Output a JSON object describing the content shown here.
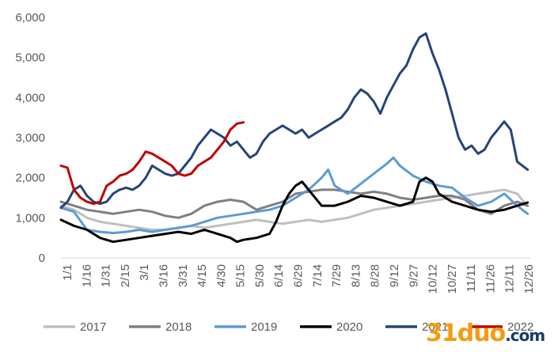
{
  "chart_data": {
    "type": "line",
    "title": "",
    "xlabel": "",
    "ylabel": "",
    "ylim": [
      0,
      6000
    ],
    "y_ticks": [
      "0",
      "1,000",
      "2,000",
      "3,000",
      "4,000",
      "5,000",
      "6,000"
    ],
    "y_tick_values": [
      0,
      1000,
      2000,
      3000,
      4000,
      5000,
      6000
    ],
    "x_tick_labels": [
      "1/1",
      "1/16",
      "1/31",
      "2/15",
      "3/1",
      "3/16",
      "3/31",
      "4/15",
      "4/30",
      "5/15",
      "5/30",
      "6/14",
      "6/29",
      "7/14",
      "7/29",
      "8/13",
      "8/28",
      "9/12",
      "9/27",
      "10/12",
      "10/27",
      "11/11",
      "11/26",
      "12/11",
      "12/26"
    ],
    "x_unit": "day of year",
    "xlim": [
      0,
      360
    ],
    "grid": false,
    "legend_position": "bottom",
    "series": [
      {
        "name": "2017",
        "color": "#bfbfbf",
        "width": 3,
        "points": [
          [
            0,
            1300
          ],
          [
            10,
            1200
          ],
          [
            20,
            1000
          ],
          [
            30,
            900
          ],
          [
            40,
            850
          ],
          [
            50,
            800
          ],
          [
            60,
            750
          ],
          [
            70,
            700
          ],
          [
            80,
            700
          ],
          [
            90,
            750
          ],
          [
            100,
            800
          ],
          [
            110,
            750
          ],
          [
            120,
            800
          ],
          [
            130,
            850
          ],
          [
            140,
            900
          ],
          [
            150,
            950
          ],
          [
            160,
            900
          ],
          [
            170,
            850
          ],
          [
            180,
            900
          ],
          [
            190,
            950
          ],
          [
            200,
            900
          ],
          [
            210,
            950
          ],
          [
            220,
            1000
          ],
          [
            230,
            1100
          ],
          [
            240,
            1200
          ],
          [
            250,
            1250
          ],
          [
            260,
            1300
          ],
          [
            270,
            1350
          ],
          [
            280,
            1400
          ],
          [
            290,
            1450
          ],
          [
            300,
            1500
          ],
          [
            310,
            1550
          ],
          [
            320,
            1600
          ],
          [
            330,
            1650
          ],
          [
            340,
            1700
          ],
          [
            350,
            1600
          ],
          [
            355,
            1400
          ]
        ]
      },
      {
        "name": "2018",
        "color": "#7f7f7f",
        "width": 3,
        "points": [
          [
            0,
            1400
          ],
          [
            10,
            1300
          ],
          [
            20,
            1200
          ],
          [
            30,
            1150
          ],
          [
            40,
            1100
          ],
          [
            50,
            1150
          ],
          [
            60,
            1200
          ],
          [
            70,
            1150
          ],
          [
            80,
            1050
          ],
          [
            90,
            1000
          ],
          [
            100,
            1100
          ],
          [
            110,
            1300
          ],
          [
            120,
            1400
          ],
          [
            130,
            1450
          ],
          [
            140,
            1400
          ],
          [
            150,
            1200
          ],
          [
            160,
            1300
          ],
          [
            170,
            1400
          ],
          [
            180,
            1600
          ],
          [
            190,
            1650
          ],
          [
            200,
            1700
          ],
          [
            210,
            1700
          ],
          [
            220,
            1650
          ],
          [
            230,
            1600
          ],
          [
            240,
            1650
          ],
          [
            250,
            1600
          ],
          [
            260,
            1500
          ],
          [
            270,
            1450
          ],
          [
            280,
            1500
          ],
          [
            290,
            1550
          ],
          [
            300,
            1550
          ],
          [
            310,
            1450
          ],
          [
            320,
            1200
          ],
          [
            330,
            1100
          ],
          [
            340,
            1300
          ],
          [
            350,
            1400
          ],
          [
            358,
            1300
          ]
        ]
      },
      {
        "name": "2019",
        "color": "#5b9bd5",
        "width": 3,
        "points": [
          [
            0,
            1250
          ],
          [
            10,
            1150
          ],
          [
            20,
            700
          ],
          [
            30,
            650
          ],
          [
            40,
            620
          ],
          [
            50,
            650
          ],
          [
            60,
            700
          ],
          [
            70,
            650
          ],
          [
            80,
            700
          ],
          [
            90,
            750
          ],
          [
            100,
            800
          ],
          [
            110,
            900
          ],
          [
            120,
            1000
          ],
          [
            130,
            1050
          ],
          [
            140,
            1100
          ],
          [
            150,
            1150
          ],
          [
            160,
            1200
          ],
          [
            170,
            1300
          ],
          [
            180,
            1500
          ],
          [
            190,
            1700
          ],
          [
            200,
            2000
          ],
          [
            205,
            2200
          ],
          [
            210,
            1800
          ],
          [
            220,
            1600
          ],
          [
            230,
            1850
          ],
          [
            240,
            2100
          ],
          [
            250,
            2350
          ],
          [
            255,
            2500
          ],
          [
            260,
            2300
          ],
          [
            270,
            2050
          ],
          [
            280,
            1900
          ],
          [
            290,
            1800
          ],
          [
            300,
            1750
          ],
          [
            310,
            1500
          ],
          [
            320,
            1300
          ],
          [
            330,
            1400
          ],
          [
            340,
            1600
          ],
          [
            350,
            1300
          ],
          [
            358,
            1100
          ]
        ]
      },
      {
        "name": "2020",
        "color": "#000000",
        "width": 3,
        "points": [
          [
            0,
            950
          ],
          [
            10,
            800
          ],
          [
            20,
            700
          ],
          [
            30,
            500
          ],
          [
            40,
            400
          ],
          [
            50,
            450
          ],
          [
            60,
            500
          ],
          [
            70,
            550
          ],
          [
            80,
            600
          ],
          [
            90,
            650
          ],
          [
            100,
            600
          ],
          [
            110,
            700
          ],
          [
            120,
            600
          ],
          [
            130,
            500
          ],
          [
            135,
            400
          ],
          [
            140,
            450
          ],
          [
            150,
            500
          ],
          [
            160,
            600
          ],
          [
            165,
            900
          ],
          [
            170,
            1300
          ],
          [
            175,
            1600
          ],
          [
            180,
            1800
          ],
          [
            185,
            1900
          ],
          [
            190,
            1700
          ],
          [
            200,
            1300
          ],
          [
            210,
            1300
          ],
          [
            220,
            1400
          ],
          [
            230,
            1550
          ],
          [
            240,
            1500
          ],
          [
            250,
            1400
          ],
          [
            260,
            1300
          ],
          [
            270,
            1400
          ],
          [
            275,
            1900
          ],
          [
            280,
            2000
          ],
          [
            285,
            1900
          ],
          [
            290,
            1600
          ],
          [
            300,
            1400
          ],
          [
            310,
            1300
          ],
          [
            320,
            1200
          ],
          [
            330,
            1150
          ],
          [
            340,
            1200
          ],
          [
            350,
            1300
          ],
          [
            358,
            1380
          ]
        ]
      },
      {
        "name": "2021",
        "color": "#264478",
        "width": 3,
        "points": [
          [
            0,
            1250
          ],
          [
            5,
            1400
          ],
          [
            10,
            1700
          ],
          [
            15,
            1800
          ],
          [
            20,
            1550
          ],
          [
            25,
            1400
          ],
          [
            30,
            1350
          ],
          [
            35,
            1400
          ],
          [
            40,
            1600
          ],
          [
            45,
            1700
          ],
          [
            50,
            1750
          ],
          [
            55,
            1700
          ],
          [
            60,
            1800
          ],
          [
            65,
            2000
          ],
          [
            70,
            2300
          ],
          [
            75,
            2200
          ],
          [
            80,
            2100
          ],
          [
            85,
            2050
          ],
          [
            90,
            2100
          ],
          [
            95,
            2300
          ],
          [
            100,
            2500
          ],
          [
            105,
            2800
          ],
          [
            110,
            3000
          ],
          [
            115,
            3200
          ],
          [
            120,
            3100
          ],
          [
            125,
            3000
          ],
          [
            130,
            2800
          ],
          [
            135,
            2900
          ],
          [
            140,
            2700
          ],
          [
            145,
            2500
          ],
          [
            150,
            2600
          ],
          [
            155,
            2900
          ],
          [
            160,
            3100
          ],
          [
            165,
            3200
          ],
          [
            170,
            3300
          ],
          [
            175,
            3200
          ],
          [
            180,
            3100
          ],
          [
            185,
            3200
          ],
          [
            190,
            3000
          ],
          [
            195,
            3100
          ],
          [
            200,
            3200
          ],
          [
            205,
            3300
          ],
          [
            210,
            3400
          ],
          [
            215,
            3500
          ],
          [
            220,
            3700
          ],
          [
            225,
            4000
          ],
          [
            230,
            4200
          ],
          [
            235,
            4100
          ],
          [
            240,
            3900
          ],
          [
            245,
            3600
          ],
          [
            250,
            4000
          ],
          [
            255,
            4300
          ],
          [
            260,
            4600
          ],
          [
            265,
            4800
          ],
          [
            270,
            5200
          ],
          [
            275,
            5500
          ],
          [
            280,
            5600
          ],
          [
            285,
            5100
          ],
          [
            290,
            4700
          ],
          [
            295,
            4200
          ],
          [
            300,
            3600
          ],
          [
            305,
            3000
          ],
          [
            310,
            2700
          ],
          [
            315,
            2800
          ],
          [
            320,
            2600
          ],
          [
            325,
            2700
          ],
          [
            330,
            3000
          ],
          [
            335,
            3200
          ],
          [
            340,
            3400
          ],
          [
            345,
            3200
          ],
          [
            350,
            2400
          ],
          [
            358,
            2200
          ]
        ]
      },
      {
        "name": "2022",
        "color": "#c00000",
        "width": 3,
        "points": [
          [
            0,
            2300
          ],
          [
            5,
            2250
          ],
          [
            10,
            1700
          ],
          [
            15,
            1500
          ],
          [
            20,
            1400
          ],
          [
            25,
            1350
          ],
          [
            30,
            1400
          ],
          [
            35,
            1800
          ],
          [
            40,
            1900
          ],
          [
            45,
            2050
          ],
          [
            50,
            2100
          ],
          [
            55,
            2200
          ],
          [
            60,
            2400
          ],
          [
            65,
            2650
          ],
          [
            70,
            2600
          ],
          [
            75,
            2500
          ],
          [
            80,
            2400
          ],
          [
            85,
            2300
          ],
          [
            90,
            2100
          ],
          [
            95,
            2050
          ],
          [
            100,
            2100
          ],
          [
            105,
            2300
          ],
          [
            110,
            2400
          ],
          [
            115,
            2500
          ],
          [
            120,
            2700
          ],
          [
            125,
            2900
          ],
          [
            130,
            3200
          ],
          [
            135,
            3350
          ],
          [
            140,
            3380
          ]
        ]
      }
    ]
  },
  "watermark": {
    "main": "31duo",
    "tld": ".com"
  }
}
